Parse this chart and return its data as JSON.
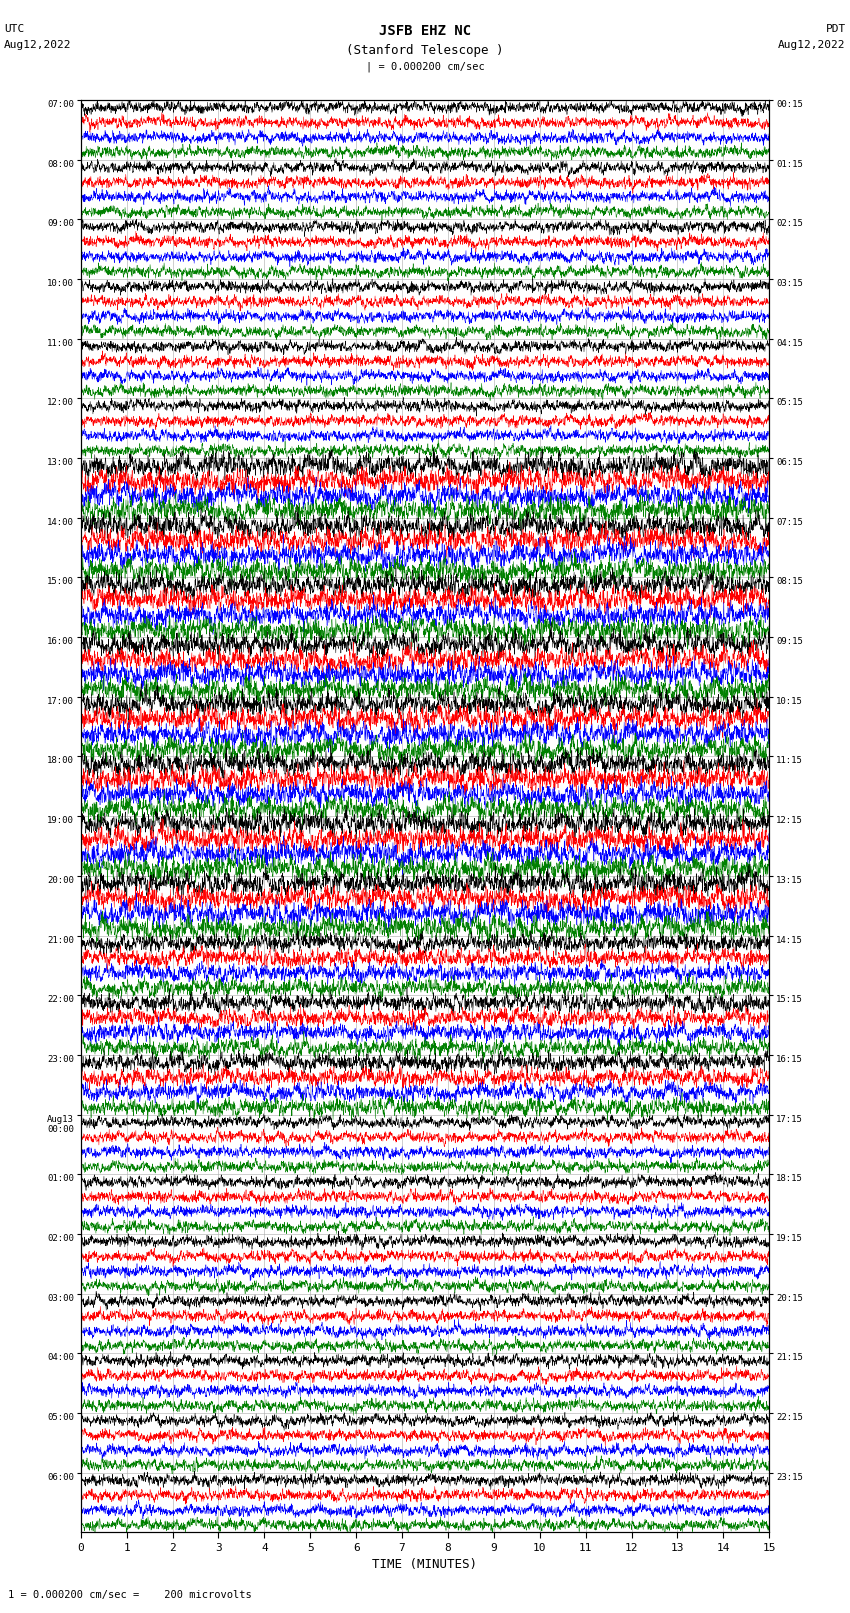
{
  "title_line1": "JSFB EHZ NC",
  "title_line2": "(Stanford Telescope )",
  "scale_text": "| = 0.000200 cm/sec",
  "bottom_text": "1 = 0.000200 cm/sec =    200 microvolts",
  "left_header1": "UTC",
  "left_header2": "Aug12,2022",
  "right_header1": "PDT",
  "right_header2": "Aug12,2022",
  "xlabel": "TIME (MINUTES)",
  "left_times": [
    "07:00",
    "08:00",
    "09:00",
    "10:00",
    "11:00",
    "12:00",
    "13:00",
    "14:00",
    "15:00",
    "16:00",
    "17:00",
    "18:00",
    "19:00",
    "20:00",
    "21:00",
    "22:00",
    "23:00",
    "Aug13\n00:00",
    "01:00",
    "02:00",
    "03:00",
    "04:00",
    "05:00",
    "06:00"
  ],
  "right_times": [
    "00:15",
    "01:15",
    "02:15",
    "03:15",
    "04:15",
    "05:15",
    "06:15",
    "07:15",
    "08:15",
    "09:15",
    "10:15",
    "11:15",
    "12:15",
    "13:15",
    "14:15",
    "15:15",
    "16:15",
    "17:15",
    "18:15",
    "19:15",
    "20:15",
    "21:15",
    "22:15",
    "23:15"
  ],
  "n_rows": 24,
  "traces_per_row": 4,
  "colors": [
    "black",
    "red",
    "blue",
    "green"
  ],
  "fig_width": 8.5,
  "fig_height": 16.13,
  "bg_color": "white",
  "xmin": 0,
  "xmax": 15,
  "xticks": [
    0,
    1,
    2,
    3,
    4,
    5,
    6,
    7,
    8,
    9,
    10,
    11,
    12,
    13,
    14,
    15
  ],
  "seed": 42
}
